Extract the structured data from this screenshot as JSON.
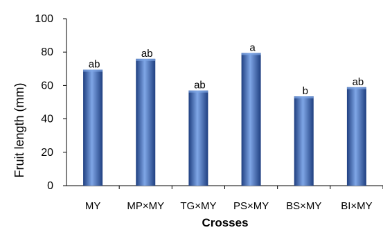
{
  "chart_data": {
    "type": "bar",
    "categories": [
      "MY",
      "MP×MY",
      "TG×MY",
      "PS×MY",
      "BS×MY",
      "BI×MY"
    ],
    "values": [
      69.5,
      76,
      57,
      79.5,
      53.5,
      59
    ],
    "data_labels": [
      "ab",
      "ab",
      "ab",
      "a",
      "b",
      "ab"
    ],
    "xlabel": "Crosses",
    "ylabel": "Fruit length (mm)",
    "ylim": [
      0,
      100
    ],
    "yticks": [
      0,
      20,
      40,
      60,
      80,
      100
    ],
    "grid": false,
    "legend": "none",
    "bar_color": "#3d6fc0",
    "bar_color_light": "#7fa6e6",
    "bar_color_dark": "#1f3f80"
  }
}
